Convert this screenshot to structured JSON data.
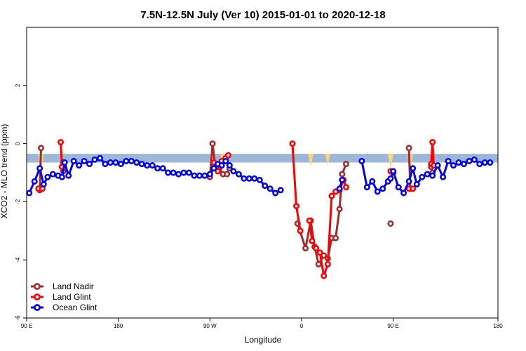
{
  "chart_data": {
    "type": "line",
    "title": "7.5N-12.5N July (Ver 10)   2015-01-01 to 2020-12-18",
    "xlabel": "Longitude",
    "ylabel": "XCO2 - MLO trend (ppm)",
    "xlim": [
      -90,
      270
    ],
    "ylim": [
      -6,
      4
    ],
    "xticks": [
      {
        "value": -90,
        "label": "90 E"
      },
      {
        "value": -20,
        "label": "180"
      },
      {
        "value": 50,
        "label": "90 W"
      },
      {
        "value": 120,
        "label": "0"
      },
      {
        "value": 190,
        "label": "90 E"
      },
      {
        "value": 270,
        "label": "180"
      }
    ],
    "yticks": [
      {
        "value": -6,
        "label": "-6"
      },
      {
        "value": -4,
        "label": "-4"
      },
      {
        "value": -2,
        "label": "-2"
      },
      {
        "value": 0,
        "label": "0"
      },
      {
        "value": 2,
        "label": "2"
      }
    ],
    "grid": false,
    "legend_position": "bottom-left",
    "band": {
      "color": "#9db7d9",
      "y_range": [
        -0.65,
        -0.35
      ],
      "deviation_color": "#f7d57a",
      "deviations": [
        {
          "x": -79,
          "y": -0.95
        },
        {
          "x": 52,
          "y": -0.9
        },
        {
          "x": 60,
          "y": -0.85
        },
        {
          "x": 127,
          "y": -0.8
        },
        {
          "x": 140,
          "y": -0.75
        },
        {
          "x": 188,
          "y": -0.85
        },
        {
          "x": 203,
          "y": -0.9
        }
      ]
    },
    "series": [
      {
        "name": "Land Nadir",
        "color": "#a52a2a",
        "segments": [
          [
            [
              -79,
              -0.15
            ],
            [
              -80,
              -1.6
            ]
          ],
          [
            [
              -63,
              -0.8
            ],
            [
              -62,
              -0.95
            ]
          ],
          [
            [
              50,
              -1.15
            ],
            [
              52,
              0.0
            ],
            [
              54,
              -0.75
            ],
            [
              57,
              -0.85
            ],
            [
              60,
              -1.05
            ],
            [
              63,
              -1.05
            ],
            [
              65,
              -0.85
            ]
          ],
          [
            [
              117,
              -2.75
            ],
            [
              123,
              -3.6
            ],
            [
              127,
              -2.65
            ],
            [
              130,
              -3.55
            ],
            [
              133,
              -4.15
            ],
            [
              137,
              -3.85
            ],
            [
              140,
              -3.95
            ],
            [
              143,
              -3.25
            ],
            [
              146,
              -3.25
            ],
            [
              149,
              -2.25
            ],
            [
              151,
              -1.05
            ],
            [
              154,
              -0.7
            ]
          ],
          [
            [
              188,
              -2.75
            ]
          ],
          [
            [
              202,
              -0.15
            ],
            [
              203,
              -1.55
            ]
          ],
          [
            [
              219,
              -0.8
            ],
            [
              220,
              -1.0
            ]
          ]
        ]
      },
      {
        "name": "Land Glint",
        "color": "#ff0000",
        "segments": [
          [
            [
              -81,
              -1.55
            ],
            [
              -78,
              -1.55
            ]
          ],
          [
            [
              -64,
              0.05
            ],
            [
              -63,
              -0.8
            ],
            [
              -62,
              -0.65
            ]
          ],
          [
            [
              53,
              -0.65
            ],
            [
              56,
              -0.95
            ],
            [
              59,
              -0.6
            ],
            [
              62,
              -0.5
            ],
            [
              64,
              -0.4
            ]
          ],
          [
            [
              113,
              0.0
            ],
            [
              116,
              -2.15
            ],
            [
              119,
              -3.0
            ]
          ],
          [
            [
              126,
              -2.65
            ],
            [
              128,
              -3.35
            ],
            [
              131,
              -3.6
            ],
            [
              134,
              -3.75
            ],
            [
              137,
              -4.55
            ],
            [
              140,
              -4.15
            ],
            [
              143,
              -1.8
            ],
            [
              146,
              -1.65
            ],
            [
              149,
              -1.6
            ],
            [
              152,
              -1.25
            ],
            [
              154,
              -1.5
            ]
          ],
          [
            [
              188,
              -0.95
            ],
            [
              190,
              -1.0
            ]
          ],
          [
            [
              202,
              -1.55
            ],
            [
              205,
              -1.55
            ]
          ],
          [
            [
              219,
              -0.7
            ],
            [
              220,
              0.05
            ],
            [
              221,
              -0.75
            ]
          ]
        ]
      },
      {
        "name": "Ocean Glint",
        "color": "#0000ee",
        "segments": [
          [
            [
              -88,
              -1.7
            ],
            [
              -84,
              -1.3
            ],
            [
              -80,
              -0.85
            ],
            [
              -77,
              -1.4
            ],
            [
              -74,
              -1.15
            ],
            [
              -70,
              -1.05
            ],
            [
              -66,
              -1.1
            ],
            [
              -63,
              -1.15
            ],
            [
              -61,
              -0.65
            ],
            [
              -58,
              -1.1
            ],
            [
              -54,
              -0.6
            ],
            [
              -50,
              -0.75
            ],
            [
              -46,
              -0.6
            ],
            [
              -42,
              -0.7
            ],
            [
              -38,
              -0.55
            ],
            [
              -34,
              -0.5
            ],
            [
              -30,
              -0.7
            ],
            [
              -26,
              -0.65
            ],
            [
              -22,
              -0.65
            ],
            [
              -18,
              -0.7
            ],
            [
              -14,
              -0.6
            ],
            [
              -10,
              -0.6
            ],
            [
              -6,
              -0.65
            ],
            [
              -2,
              -0.7
            ],
            [
              2,
              -0.75
            ],
            [
              6,
              -0.75
            ],
            [
              10,
              -0.85
            ],
            [
              14,
              -0.85
            ],
            [
              18,
              -1.0
            ],
            [
              22,
              -1.0
            ],
            [
              26,
              -1.05
            ],
            [
              30,
              -1.0
            ],
            [
              34,
              -1.0
            ],
            [
              38,
              -1.1
            ],
            [
              42,
              -1.1
            ],
            [
              46,
              -1.1
            ],
            [
              50,
              -1.05
            ],
            [
              53,
              -0.85
            ],
            [
              56,
              -0.7
            ],
            [
              59,
              -0.75
            ],
            [
              62,
              -0.6
            ],
            [
              65,
              -0.75
            ],
            [
              68,
              -0.95
            ],
            [
              72,
              -1.05
            ],
            [
              76,
              -1.2
            ],
            [
              80,
              -1.2
            ],
            [
              84,
              -1.2
            ],
            [
              88,
              -1.25
            ],
            [
              92,
              -1.45
            ],
            [
              96,
              -1.55
            ],
            [
              100,
              -1.7
            ],
            [
              104,
              -1.6
            ]
          ],
          [
            [
              149,
              -1.55
            ],
            [
              151,
              -1.25
            ]
          ],
          [
            [
              166,
              -0.6
            ],
            [
              170,
              -1.5
            ],
            [
              174,
              -1.3
            ],
            [
              178,
              -1.65
            ],
            [
              182,
              -1.55
            ],
            [
              186,
              -1.3
            ],
            [
              188,
              -1.2
            ],
            [
              190,
              -0.95
            ],
            [
              194,
              -1.5
            ],
            [
              198,
              -1.7
            ],
            [
              202,
              -1.3
            ],
            [
              205,
              -0.85
            ],
            [
              208,
              -1.4
            ],
            [
              212,
              -1.15
            ],
            [
              216,
              -1.05
            ],
            [
              220,
              -1.1
            ],
            [
              224,
              -0.75
            ],
            [
              228,
              -1.15
            ],
            [
              232,
              -0.6
            ],
            [
              236,
              -0.75
            ],
            [
              240,
              -0.65
            ],
            [
              244,
              -0.7
            ],
            [
              248,
              -0.6
            ],
            [
              252,
              -0.55
            ],
            [
              256,
              -0.7
            ],
            [
              260,
              -0.65
            ],
            [
              264,
              -0.65
            ]
          ]
        ]
      }
    ]
  }
}
